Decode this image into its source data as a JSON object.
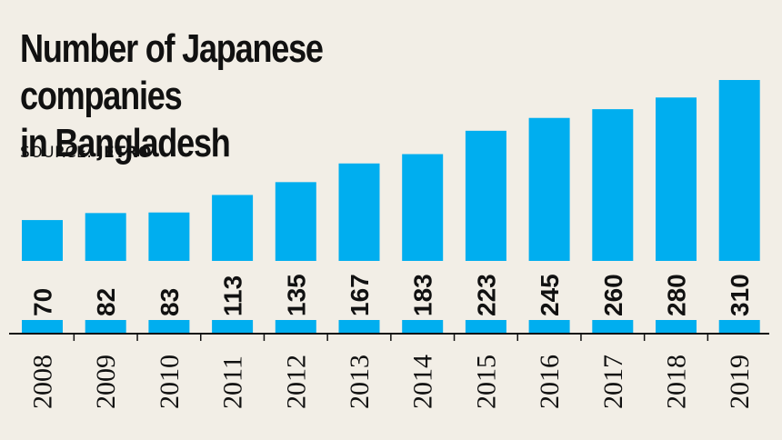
{
  "title_line1": "Number of Japanese companies",
  "title_line2": "in Bangladesh",
  "source_label": "SOURCE:",
  "source_name": "JETRO",
  "colors": {
    "bar": "#00aeef",
    "background": "#f2eee6",
    "text": "#111111"
  },
  "chart_data": {
    "type": "bar",
    "title": "Number of Japanese companies in Bangladesh",
    "categories": [
      "2008",
      "2009",
      "2010",
      "2011",
      "2012",
      "2013",
      "2014",
      "2015",
      "2016",
      "2017",
      "2018",
      "2019"
    ],
    "values": [
      70,
      82,
      83,
      113,
      135,
      167,
      183,
      223,
      245,
      260,
      280,
      310
    ],
    "ylim": [
      0,
      310
    ],
    "grid": false,
    "data_labels": true,
    "xlabel": "",
    "ylabel": ""
  }
}
